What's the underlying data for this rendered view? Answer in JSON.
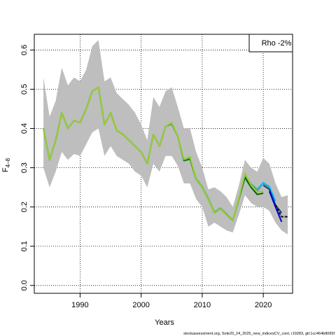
{
  "chart_data": {
    "type": "line",
    "title": "",
    "xlabel": "Years",
    "ylabel_main": "F",
    "ylabel_sub": "4–8",
    "xlim": [
      1982.5,
      2024.8
    ],
    "ylim": [
      -0.02,
      0.64
    ],
    "x_ticks": [
      1990,
      2000,
      2010,
      2020
    ],
    "y_ticks": [
      0.0,
      0.1,
      0.2,
      0.3,
      0.4,
      0.5,
      0.6
    ],
    "y_tick_labels": [
      "0.0",
      "0.1",
      "0.2",
      "0.3",
      "0.4",
      "0.5",
      "0.6"
    ],
    "grid": true,
    "legend": {
      "position": "top-right",
      "text": "Rho -2%"
    },
    "footer": "stockassessment.org, Sole20_24_2025_new_indicesCV_cont, r19283, git:1cc464b8065f",
    "confidence_band": {
      "color": "#bebebe",
      "x": [
        1984,
        1985,
        1986,
        1987,
        1988,
        1989,
        1990,
        1991,
        1992,
        1993,
        1994,
        1995,
        1996,
        1997,
        1998,
        1999,
        2000,
        2001,
        2002,
        2003,
        2004,
        2005,
        2006,
        2007,
        2008,
        2009,
        2010,
        2011,
        2012,
        2013,
        2014,
        2015,
        2016,
        2017,
        2018,
        2019,
        2020,
        2021,
        2022,
        2023,
        2024
      ],
      "lower": [
        0.3,
        0.25,
        0.29,
        0.34,
        0.32,
        0.335,
        0.33,
        0.36,
        0.39,
        0.4,
        0.33,
        0.355,
        0.33,
        0.32,
        0.31,
        0.29,
        0.28,
        0.25,
        0.31,
        0.29,
        0.33,
        0.33,
        0.305,
        0.26,
        0.26,
        0.22,
        0.2,
        0.15,
        0.16,
        0.15,
        0.14,
        0.135,
        0.18,
        0.23,
        0.21,
        0.2,
        0.2,
        0.19,
        0.16,
        0.14,
        0.13
      ],
      "upper": [
        0.53,
        0.43,
        0.47,
        0.555,
        0.51,
        0.53,
        0.52,
        0.55,
        0.61,
        0.625,
        0.52,
        0.53,
        0.49,
        0.475,
        0.46,
        0.44,
        0.41,
        0.37,
        0.48,
        0.455,
        0.495,
        0.505,
        0.455,
        0.4,
        0.4,
        0.34,
        0.3,
        0.245,
        0.25,
        0.24,
        0.225,
        0.2,
        0.255,
        0.32,
        0.3,
        0.29,
        0.325,
        0.31,
        0.26,
        0.225,
        0.23
      ]
    },
    "series": [
      {
        "color": "#8a8a8a",
        "x": [
          1984,
          1985,
          1986,
          1987,
          1988,
          1989,
          1990,
          1991,
          1992,
          1993,
          1994,
          1995,
          1996,
          1997,
          1998,
          1999,
          2000,
          2001,
          2002,
          2003,
          2004,
          2005,
          2006,
          2007,
          2008,
          2009,
          2010,
          2011,
          2012,
          2013,
          2014,
          2015,
          2016,
          2017,
          2018,
          2019,
          2020,
          2021,
          2022,
          2023,
          2024
        ],
        "values": [
          0.4,
          0.32,
          0.37,
          0.44,
          0.4,
          0.42,
          0.415,
          0.45,
          0.495,
          0.505,
          0.41,
          0.44,
          0.395,
          0.385,
          0.37,
          0.355,
          0.34,
          0.31,
          0.385,
          0.355,
          0.405,
          0.415,
          0.38,
          0.32,
          0.325,
          0.27,
          0.25,
          0.22,
          0.185,
          0.195,
          0.18,
          0.165,
          0.22,
          0.28,
          0.255,
          0.24,
          0.26,
          0.245,
          0.2,
          0.175,
          0.175
        ]
      },
      {
        "color": "#006400",
        "x": [
          1984,
          1985,
          1986,
          1987,
          1988,
          1989,
          1990,
          1991,
          1992,
          1993,
          1994,
          1995,
          1996,
          1997,
          1998,
          1999,
          2000,
          2001,
          2002,
          2003,
          2004,
          2005,
          2006,
          2007,
          2008,
          2009,
          2010,
          2011,
          2012,
          2013,
          2014,
          2015,
          2016,
          2017,
          2018,
          2019,
          2020
        ],
        "values": [
          0.4,
          0.32,
          0.37,
          0.44,
          0.4,
          0.42,
          0.415,
          0.45,
          0.495,
          0.505,
          0.41,
          0.44,
          0.395,
          0.385,
          0.37,
          0.355,
          0.34,
          0.31,
          0.385,
          0.355,
          0.405,
          0.412,
          0.38,
          0.318,
          0.322,
          0.27,
          0.25,
          0.22,
          0.185,
          0.195,
          0.18,
          0.165,
          0.22,
          0.275,
          0.25,
          0.232,
          0.235
        ]
      },
      {
        "color": "#3cb371",
        "x": [
          1984,
          1985,
          1986,
          1987,
          1988,
          1989,
          1990,
          1991,
          1992,
          1993,
          1994,
          1995,
          1996,
          1997,
          1998,
          1999,
          2000,
          2001,
          2002,
          2003,
          2004,
          2005,
          2006,
          2007,
          2008,
          2009,
          2010,
          2011,
          2012,
          2013,
          2014,
          2015,
          2016,
          2017,
          2018,
          2019,
          2020,
          2021
        ],
        "values": [
          0.4,
          0.32,
          0.37,
          0.44,
          0.4,
          0.42,
          0.415,
          0.45,
          0.495,
          0.505,
          0.41,
          0.44,
          0.395,
          0.385,
          0.37,
          0.355,
          0.34,
          0.31,
          0.385,
          0.355,
          0.405,
          0.413,
          0.38,
          0.32,
          0.325,
          0.272,
          0.252,
          0.222,
          0.187,
          0.197,
          0.182,
          0.166,
          0.222,
          0.282,
          0.258,
          0.245,
          0.262,
          0.25
        ]
      },
      {
        "color": "#9acd32",
        "x": [
          1984,
          1985,
          1986,
          1987,
          1988,
          1989,
          1990,
          1991,
          1992,
          1993,
          1994,
          1995,
          1996,
          1997,
          1998,
          1999,
          2000,
          2001,
          2002,
          2003,
          2004,
          2005,
          2006,
          2007,
          2008,
          2009,
          2010,
          2011,
          2012,
          2013,
          2014,
          2015,
          2016,
          2017,
          2018,
          2019,
          2020
        ],
        "values": [
          0.4,
          0.32,
          0.37,
          0.44,
          0.4,
          0.42,
          0.415,
          0.45,
          0.495,
          0.505,
          0.41,
          0.44,
          0.395,
          0.385,
          0.37,
          0.355,
          0.34,
          0.31,
          0.385,
          0.355,
          0.405,
          0.415,
          0.38,
          0.322,
          0.328,
          0.27,
          0.25,
          0.22,
          0.185,
          0.195,
          0.18,
          0.165,
          0.222,
          0.286,
          0.255,
          0.238,
          0.24
        ]
      },
      {
        "color": "#00bfff",
        "x": [
          2019,
          2020,
          2021,
          2022
        ],
        "values": [
          0.245,
          0.262,
          0.252,
          0.215
        ]
      },
      {
        "color": "#1e3a8a",
        "x": [
          2020,
          2021,
          2022,
          2023
        ],
        "values": [
          0.255,
          0.245,
          0.205,
          0.185
        ]
      },
      {
        "color": "#0000cd",
        "x": [
          2021,
          2022,
          2023
        ],
        "values": [
          0.24,
          0.2,
          0.162
        ]
      },
      {
        "color": "#000000",
        "dashed": true,
        "x": [
          2022,
          2023,
          2024
        ],
        "values": [
          0.205,
          0.175,
          0.175
        ]
      }
    ]
  }
}
